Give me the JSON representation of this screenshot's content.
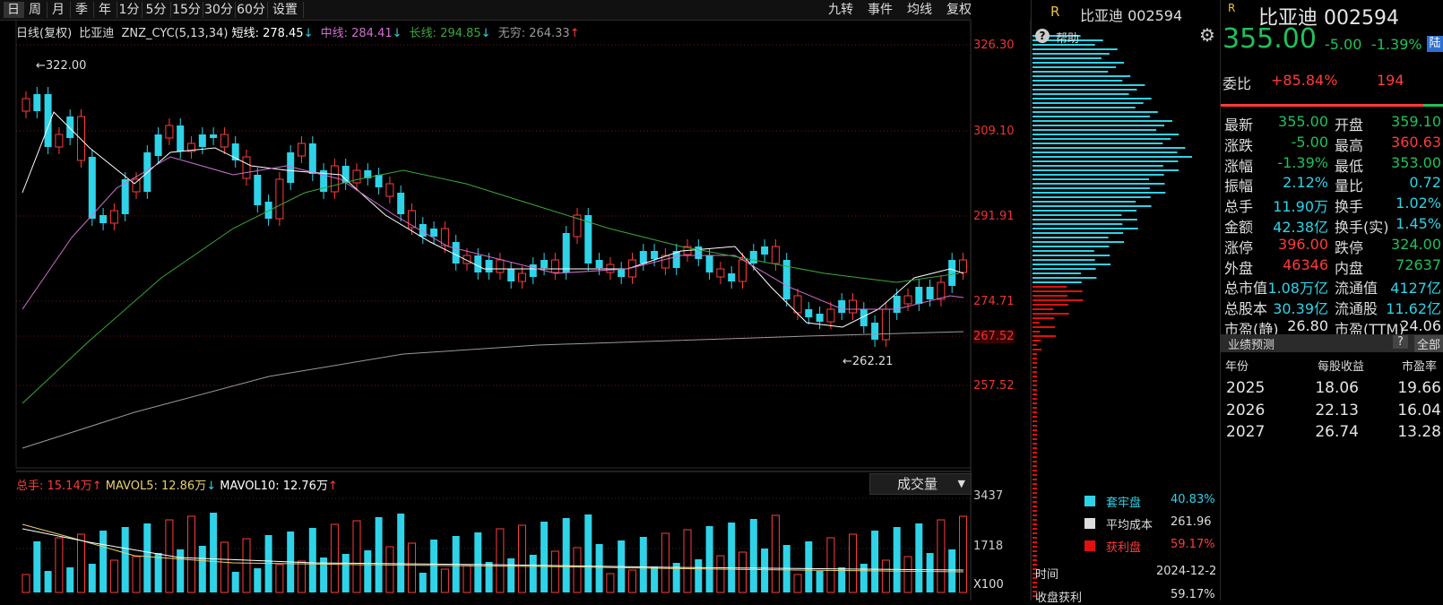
{
  "toolbar": {
    "periods": [
      "日",
      "周",
      "月",
      "季",
      "年",
      "1分",
      "5分",
      "15分",
      "30分",
      "60分",
      "设置"
    ],
    "right": [
      "九转",
      "事件",
      "均线",
      "复权"
    ]
  },
  "ma_legend": {
    "prefix": "日线(复权)",
    "name": "比亚迪",
    "formula": "ZNZ_CYC(5,13,34)",
    "short": "短线: 278.45",
    "short_arrow": "↓",
    "mid": "中线: 284.41",
    "mid_arrow": "↓",
    "long": "长线: 294.85",
    "long_arrow": "↓",
    "inf": "无穷: 264.33",
    "inf_arrow": "↑"
  },
  "price_axis": [
    "326.30",
    "309.10",
    "291.91",
    "274.71",
    "267.52",
    "257.52"
  ],
  "annotations": {
    "high": "322.00",
    "low": "262.21"
  },
  "vol_legend": {
    "total": "总手: 15.14万",
    "total_arrow": "↑",
    "mavol5": "MAVOL5: 12.86万",
    "mavol5_arrow": "↓",
    "mavol10": "MAVOL10: 12.76万",
    "mavol10_arrow": "↑"
  },
  "vol_select": {
    "label": "成交量",
    "arrow": "▼"
  },
  "vol_axis": [
    "3437",
    "1718"
  ],
  "vol_unit": "X100",
  "chip": {
    "r_mark": "R",
    "title": "比亚迪 002594",
    "help": "帮助",
    "legend": [
      {
        "label": "套牢盘",
        "value": "40.83%",
        "color": "#2fd3e8"
      },
      {
        "label": "平均成本",
        "value": "261.96",
        "color": "#dddddd"
      },
      {
        "label": "获利盘",
        "value": "59.17%",
        "color": "#e01010"
      }
    ],
    "time_label": "时间",
    "time_value": "2024-12-2",
    "profit_label": "收盘获利",
    "profit_value": "59.17%"
  },
  "quote": {
    "r_mark": "R",
    "name": "比亚迪 002594",
    "price": "355.00",
    "change": "-5.00",
    "change_pct": "-1.39%",
    "badge": "陆",
    "weibi_label": "委比",
    "weibi_value": "+85.84%",
    "weibi_count": "194",
    "rows": [
      {
        "l1": "最新",
        "v1": "355.00",
        "c1": "green",
        "l2": "开盘",
        "v2": "359.10",
        "c2": "green"
      },
      {
        "l1": "涨跌",
        "v1": "-5.00",
        "c1": "green",
        "l2": "最高",
        "v2": "360.63",
        "c2": "red"
      },
      {
        "l1": "涨幅",
        "v1": "-1.39%",
        "c1": "green",
        "l2": "最低",
        "v2": "353.00",
        "c2": "green"
      },
      {
        "l1": "振幅",
        "v1": "2.12%",
        "c1": "cyan",
        "l2": "量比",
        "v2": "0.72",
        "c2": "cyan"
      },
      {
        "l1": "总手",
        "v1": "11.90万",
        "c1": "cyan",
        "l2": "换手",
        "v2": "1.02%",
        "c2": "cyan"
      },
      {
        "l1": "金额",
        "v1": "42.38亿",
        "c1": "cyan",
        "l2": "换手(实)",
        "v2": "1.45%",
        "c2": "cyan"
      },
      {
        "l1": "涨停",
        "v1": "396.00",
        "c1": "red",
        "l2": "跌停",
        "v2": "324.00",
        "c2": "green"
      },
      {
        "l1": "外盘",
        "v1": "46346",
        "c1": "red",
        "l2": "内盘",
        "v2": "72637",
        "c2": "green"
      },
      {
        "l1": "总市值",
        "v1": "1.08万亿",
        "c1": "cyan",
        "l2": "流通值",
        "v2": "4127亿",
        "c2": "cyan"
      },
      {
        "l1": "总股本",
        "v1": "30.39亿",
        "c1": "cyan",
        "l2": "流通股",
        "v2": "11.62亿",
        "c2": "cyan"
      },
      {
        "l1": "市盈(静)",
        "v1": "26.80",
        "c1": "white",
        "l2": "市盈(TTM)",
        "v2": "24.06",
        "c2": "white"
      }
    ],
    "forecast": {
      "title": "业绩预测",
      "help": "?",
      "all": "全部",
      "headers": [
        "年份",
        "每股收益",
        "市盈率"
      ],
      "rows": [
        [
          "2025",
          "18.06",
          "19.66"
        ],
        [
          "2026",
          "22.13",
          "16.04"
        ],
        [
          "2027",
          "26.74",
          "13.28"
        ]
      ]
    }
  },
  "colors": {
    "up": "#ff3b3b",
    "down": "#2fd3e8",
    "short": "#ffffff",
    "mid": "#d070d0",
    "long": "#3aa83a",
    "inf": "#9a9a9a"
  }
}
